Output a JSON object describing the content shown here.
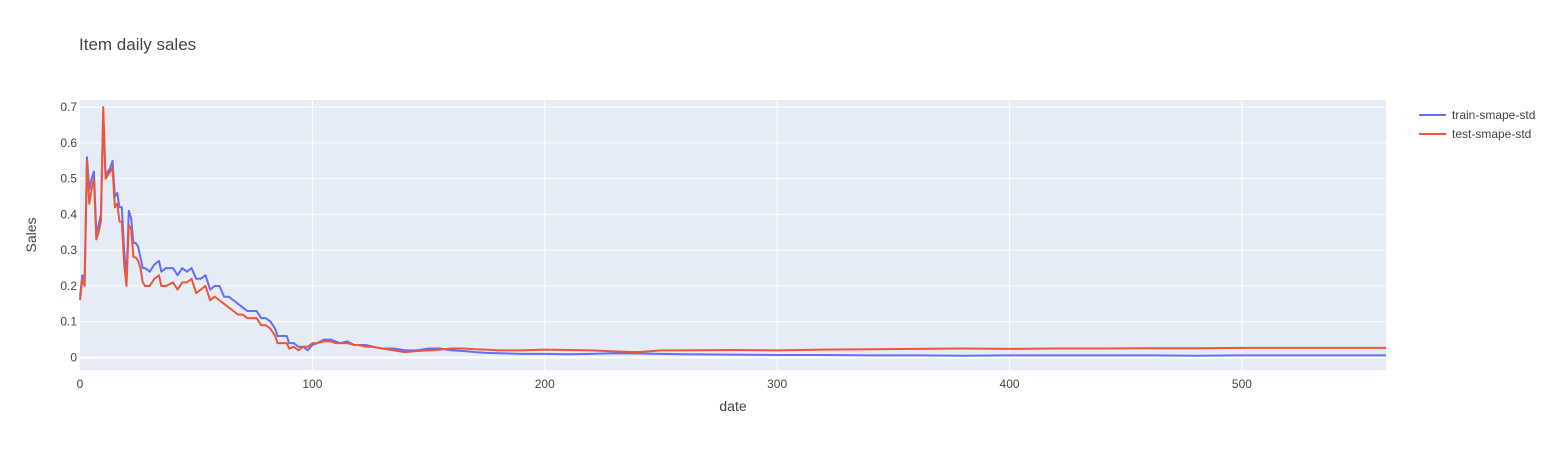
{
  "chart_data": {
    "type": "line",
    "title": "Item daily sales",
    "xlabel": "date",
    "ylabel": "Sales",
    "xlim": [
      0,
      562
    ],
    "ylim": [
      -0.035,
      0.72
    ],
    "x_ticks": [
      0,
      100,
      200,
      300,
      400,
      500
    ],
    "x_tick_labels": [
      "0",
      "100",
      "200",
      "300",
      "400",
      "500"
    ],
    "y_ticks": [
      0,
      0.1,
      0.2,
      0.3,
      0.4,
      0.5,
      0.6,
      0.7
    ],
    "y_tick_labels": [
      "0",
      "0.1",
      "0.2",
      "0.3",
      "0.4",
      "0.5",
      "0.6",
      "0.7"
    ],
    "grid": true,
    "legend_position": "right",
    "plot_background": "#e5ecf6",
    "grid_color": "#ffffff",
    "series": [
      {
        "name": "train-smape-std",
        "color": "#636efa",
        "points": [
          [
            0,
            0.17
          ],
          [
            1,
            0.23
          ],
          [
            2,
            0.22
          ],
          [
            3,
            0.56
          ],
          [
            4,
            0.47
          ],
          [
            5,
            0.5
          ],
          [
            6,
            0.52
          ],
          [
            7,
            0.35
          ],
          [
            8,
            0.37
          ],
          [
            9,
            0.4
          ],
          [
            10,
            0.68
          ],
          [
            11,
            0.51
          ],
          [
            12,
            0.52
          ],
          [
            13,
            0.53
          ],
          [
            14,
            0.55
          ],
          [
            15,
            0.45
          ],
          [
            16,
            0.46
          ],
          [
            17,
            0.42
          ],
          [
            18,
            0.42
          ],
          [
            19,
            0.3
          ],
          [
            20,
            0.22
          ],
          [
            21,
            0.41
          ],
          [
            22,
            0.39
          ],
          [
            23,
            0.32
          ],
          [
            24,
            0.32
          ],
          [
            25,
            0.31
          ],
          [
            26,
            0.28
          ],
          [
            27,
            0.25
          ],
          [
            28,
            0.25
          ],
          [
            30,
            0.24
          ],
          [
            32,
            0.26
          ],
          [
            34,
            0.27
          ],
          [
            35,
            0.24
          ],
          [
            37,
            0.25
          ],
          [
            40,
            0.25
          ],
          [
            42,
            0.23
          ],
          [
            44,
            0.25
          ],
          [
            46,
            0.24
          ],
          [
            48,
            0.25
          ],
          [
            50,
            0.22
          ],
          [
            52,
            0.22
          ],
          [
            54,
            0.23
          ],
          [
            56,
            0.19
          ],
          [
            58,
            0.2
          ],
          [
            60,
            0.2
          ],
          [
            62,
            0.17
          ],
          [
            64,
            0.17
          ],
          [
            66,
            0.16
          ],
          [
            68,
            0.15
          ],
          [
            70,
            0.14
          ],
          [
            72,
            0.13
          ],
          [
            74,
            0.13
          ],
          [
            76,
            0.13
          ],
          [
            78,
            0.11
          ],
          [
            80,
            0.11
          ],
          [
            82,
            0.1
          ],
          [
            84,
            0.08
          ],
          [
            85,
            0.06
          ],
          [
            87,
            0.06
          ],
          [
            89,
            0.06
          ],
          [
            90,
            0.04
          ],
          [
            92,
            0.04
          ],
          [
            94,
            0.03
          ],
          [
            96,
            0.03
          ],
          [
            98,
            0.02
          ],
          [
            100,
            0.035
          ],
          [
            102,
            0.04
          ],
          [
            105,
            0.05
          ],
          [
            108,
            0.05
          ],
          [
            110,
            0.045
          ],
          [
            112,
            0.04
          ],
          [
            115,
            0.045
          ],
          [
            118,
            0.035
          ],
          [
            120,
            0.035
          ],
          [
            123,
            0.035
          ],
          [
            126,
            0.03
          ],
          [
            130,
            0.025
          ],
          [
            135,
            0.025
          ],
          [
            140,
            0.02
          ],
          [
            145,
            0.02
          ],
          [
            150,
            0.025
          ],
          [
            155,
            0.025
          ],
          [
            160,
            0.02
          ],
          [
            165,
            0.018
          ],
          [
            170,
            0.015
          ],
          [
            175,
            0.013
          ],
          [
            180,
            0.012
          ],
          [
            190,
            0.01
          ],
          [
            200,
            0.01
          ],
          [
            210,
            0.009
          ],
          [
            220,
            0.01
          ],
          [
            230,
            0.012
          ],
          [
            240,
            0.011
          ],
          [
            250,
            0.01
          ],
          [
            260,
            0.009
          ],
          [
            280,
            0.008
          ],
          [
            300,
            0.007
          ],
          [
            320,
            0.007
          ],
          [
            340,
            0.006
          ],
          [
            360,
            0.006
          ],
          [
            380,
            0.005
          ],
          [
            400,
            0.006
          ],
          [
            420,
            0.006
          ],
          [
            440,
            0.006
          ],
          [
            460,
            0.006
          ],
          [
            480,
            0.005
          ],
          [
            500,
            0.006
          ],
          [
            520,
            0.006
          ],
          [
            540,
            0.006
          ],
          [
            562,
            0.006
          ]
        ]
      },
      {
        "name": "test-smape-std",
        "color": "#ef553b",
        "points": [
          [
            0,
            0.16
          ],
          [
            1,
            0.22
          ],
          [
            2,
            0.2
          ],
          [
            3,
            0.55
          ],
          [
            4,
            0.43
          ],
          [
            5,
            0.47
          ],
          [
            6,
            0.5
          ],
          [
            7,
            0.33
          ],
          [
            8,
            0.35
          ],
          [
            9,
            0.38
          ],
          [
            10,
            0.7
          ],
          [
            11,
            0.5
          ],
          [
            12,
            0.51
          ],
          [
            13,
            0.52
          ],
          [
            14,
            0.53
          ],
          [
            15,
            0.42
          ],
          [
            16,
            0.43
          ],
          [
            17,
            0.38
          ],
          [
            18,
            0.38
          ],
          [
            19,
            0.26
          ],
          [
            20,
            0.2
          ],
          [
            21,
            0.37
          ],
          [
            22,
            0.36
          ],
          [
            23,
            0.28
          ],
          [
            24,
            0.28
          ],
          [
            25,
            0.27
          ],
          [
            26,
            0.25
          ],
          [
            27,
            0.21
          ],
          [
            28,
            0.2
          ],
          [
            30,
            0.2
          ],
          [
            32,
            0.22
          ],
          [
            34,
            0.23
          ],
          [
            35,
            0.2
          ],
          [
            37,
            0.2
          ],
          [
            40,
            0.21
          ],
          [
            42,
            0.19
          ],
          [
            44,
            0.21
          ],
          [
            46,
            0.21
          ],
          [
            48,
            0.22
          ],
          [
            50,
            0.18
          ],
          [
            52,
            0.19
          ],
          [
            54,
            0.2
          ],
          [
            56,
            0.16
          ],
          [
            58,
            0.17
          ],
          [
            60,
            0.16
          ],
          [
            62,
            0.15
          ],
          [
            64,
            0.14
          ],
          [
            66,
            0.13
          ],
          [
            68,
            0.12
          ],
          [
            70,
            0.12
          ],
          [
            72,
            0.11
          ],
          [
            74,
            0.11
          ],
          [
            76,
            0.11
          ],
          [
            78,
            0.09
          ],
          [
            80,
            0.09
          ],
          [
            82,
            0.08
          ],
          [
            84,
            0.06
          ],
          [
            85,
            0.04
          ],
          [
            87,
            0.04
          ],
          [
            89,
            0.04
          ],
          [
            90,
            0.025
          ],
          [
            92,
            0.03
          ],
          [
            94,
            0.02
          ],
          [
            96,
            0.03
          ],
          [
            98,
            0.03
          ],
          [
            100,
            0.04
          ],
          [
            102,
            0.04
          ],
          [
            105,
            0.045
          ],
          [
            108,
            0.045
          ],
          [
            110,
            0.04
          ],
          [
            112,
            0.04
          ],
          [
            115,
            0.04
          ],
          [
            118,
            0.035
          ],
          [
            120,
            0.035
          ],
          [
            123,
            0.03
          ],
          [
            126,
            0.03
          ],
          [
            130,
            0.025
          ],
          [
            135,
            0.02
          ],
          [
            140,
            0.015
          ],
          [
            145,
            0.018
          ],
          [
            150,
            0.02
          ],
          [
            155,
            0.022
          ],
          [
            160,
            0.025
          ],
          [
            165,
            0.025
          ],
          [
            170,
            0.023
          ],
          [
            175,
            0.022
          ],
          [
            180,
            0.02
          ],
          [
            190,
            0.02
          ],
          [
            200,
            0.022
          ],
          [
            210,
            0.021
          ],
          [
            220,
            0.02
          ],
          [
            230,
            0.017
          ],
          [
            240,
            0.015
          ],
          [
            250,
            0.02
          ],
          [
            260,
            0.02
          ],
          [
            280,
            0.021
          ],
          [
            300,
            0.02
          ],
          [
            320,
            0.022
          ],
          [
            340,
            0.023
          ],
          [
            360,
            0.024
          ],
          [
            380,
            0.025
          ],
          [
            400,
            0.024
          ],
          [
            420,
            0.025
          ],
          [
            440,
            0.025
          ],
          [
            460,
            0.026
          ],
          [
            480,
            0.026
          ],
          [
            500,
            0.027
          ],
          [
            520,
            0.027
          ],
          [
            540,
            0.027
          ],
          [
            562,
            0.027
          ]
        ]
      }
    ]
  }
}
